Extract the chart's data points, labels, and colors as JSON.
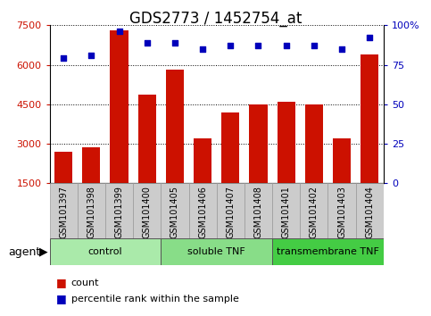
{
  "title": "GDS2773 / 1452754_at",
  "samples": [
    "GSM101397",
    "GSM101398",
    "GSM101399",
    "GSM101400",
    "GSM101405",
    "GSM101406",
    "GSM101407",
    "GSM101408",
    "GSM101401",
    "GSM101402",
    "GSM101403",
    "GSM101404"
  ],
  "counts": [
    2700,
    2850,
    7300,
    4850,
    5800,
    3200,
    4200,
    4500,
    4600,
    4500,
    3200,
    6400
  ],
  "percentiles": [
    79,
    81,
    96,
    89,
    89,
    85,
    87,
    87,
    87,
    87,
    85,
    92
  ],
  "groups": [
    {
      "label": "control",
      "start": 0,
      "end": 4,
      "color": "#aaeaaa"
    },
    {
      "label": "soluble TNF",
      "start": 4,
      "end": 8,
      "color": "#88dd88"
    },
    {
      "label": "transmembrane TNF",
      "start": 8,
      "end": 12,
      "color": "#44cc44"
    }
  ],
  "ylim_left": [
    1500,
    7500
  ],
  "yticks_left": [
    1500,
    3000,
    4500,
    6000,
    7500
  ],
  "ylim_right": [
    0,
    100
  ],
  "yticks_right": [
    0,
    25,
    50,
    75,
    100
  ],
  "bar_color": "#cc1100",
  "dot_color": "#0000bb",
  "bar_width": 0.65,
  "grid_color": "#000000",
  "bg_color": "#ffffff",
  "tick_label_color_left": "#cc1100",
  "tick_label_color_right": "#0000bb",
  "xlabel_agent": "agent",
  "legend_count": "count",
  "legend_percentile": "percentile rank within the sample",
  "title_fontsize": 12,
  "tick_fontsize": 8,
  "label_fontsize": 9,
  "sample_box_color": "#cccccc",
  "sample_box_edge": "#999999"
}
